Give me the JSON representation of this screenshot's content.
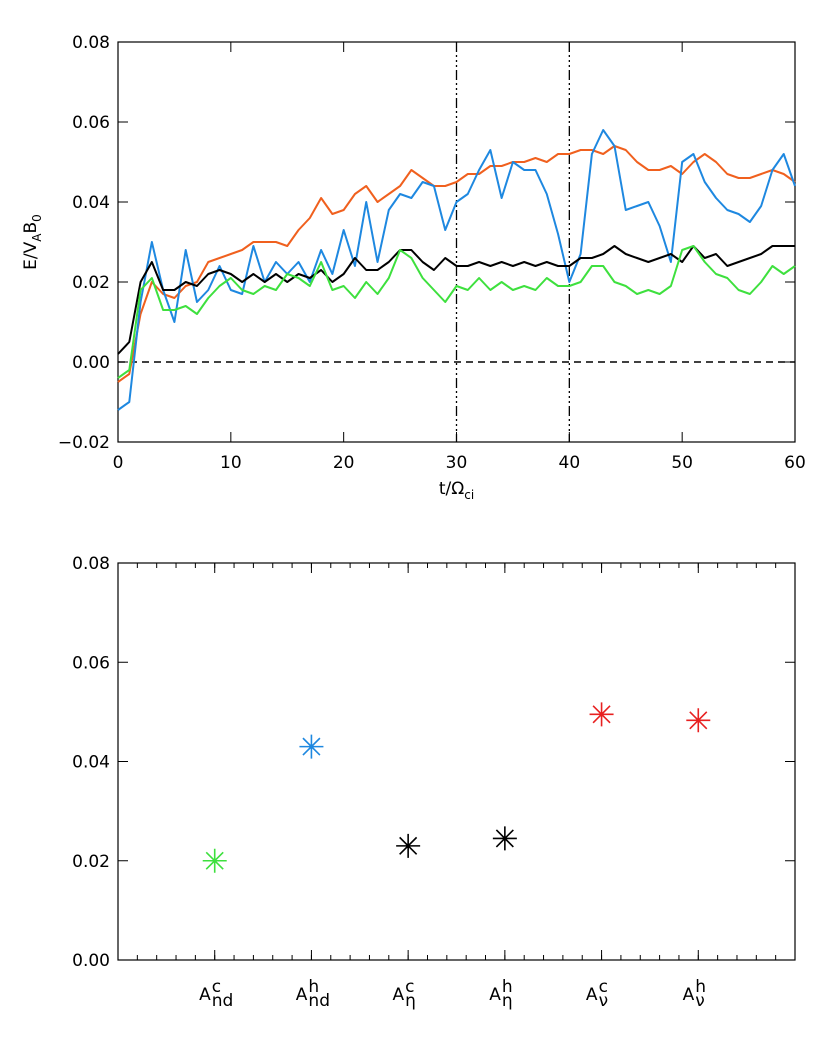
{
  "chart_data": [
    {
      "type": "line",
      "xlabel": [
        "t/Ω",
        "ci"
      ],
      "ylabel": [
        "E/V",
        "A",
        "B",
        "0"
      ],
      "x": [
        0,
        1,
        2,
        3,
        4,
        5,
        6,
        7,
        8,
        9,
        10,
        11,
        12,
        13,
        14,
        15,
        16,
        17,
        18,
        19,
        20,
        21,
        22,
        23,
        24,
        25,
        26,
        27,
        28,
        29,
        30,
        31,
        32,
        33,
        34,
        35,
        36,
        37,
        38,
        39,
        40,
        41,
        42,
        43,
        44,
        45,
        46,
        47,
        48,
        49,
        50,
        51,
        52,
        53,
        54,
        55,
        56,
        57,
        58,
        59,
        60
      ],
      "series": [
        {
          "color": "#f0601e",
          "values": [
            -0.005,
            -0.003,
            0.012,
            0.02,
            0.017,
            0.016,
            0.019,
            0.02,
            0.025,
            0.026,
            0.027,
            0.028,
            0.03,
            0.03,
            0.03,
            0.029,
            0.033,
            0.036,
            0.041,
            0.037,
            0.038,
            0.042,
            0.044,
            0.04,
            0.042,
            0.044,
            0.048,
            0.046,
            0.044,
            0.044,
            0.045,
            0.047,
            0.047,
            0.049,
            0.049,
            0.05,
            0.05,
            0.051,
            0.05,
            0.052,
            0.052,
            0.053,
            0.053,
            0.052,
            0.054,
            0.053,
            0.05,
            0.048,
            0.048,
            0.049,
            0.047,
            0.05,
            0.052,
            0.05,
            0.047,
            0.046,
            0.046,
            0.047,
            0.048,
            0.047,
            0.045
          ]
        },
        {
          "color": "#1e88e0",
          "values": [
            -0.012,
            -0.01,
            0.015,
            0.03,
            0.018,
            0.01,
            0.028,
            0.015,
            0.018,
            0.024,
            0.018,
            0.017,
            0.029,
            0.02,
            0.025,
            0.022,
            0.025,
            0.02,
            0.028,
            0.022,
            0.033,
            0.024,
            0.04,
            0.025,
            0.038,
            0.042,
            0.041,
            0.045,
            0.044,
            0.033,
            0.04,
            0.042,
            0.048,
            0.053,
            0.041,
            0.05,
            0.048,
            0.048,
            0.042,
            0.032,
            0.02,
            0.027,
            0.052,
            0.058,
            0.054,
            0.038,
            0.039,
            0.04,
            0.034,
            0.025,
            0.05,
            0.052,
            0.045,
            0.041,
            0.038,
            0.037,
            0.035,
            0.039,
            0.048,
            0.052,
            0.044
          ]
        },
        {
          "color": "#000000",
          "values": [
            0.002,
            0.005,
            0.02,
            0.025,
            0.018,
            0.018,
            0.02,
            0.019,
            0.022,
            0.023,
            0.022,
            0.02,
            0.022,
            0.02,
            0.022,
            0.02,
            0.022,
            0.021,
            0.023,
            0.02,
            0.022,
            0.026,
            0.023,
            0.023,
            0.025,
            0.028,
            0.028,
            0.025,
            0.023,
            0.026,
            0.024,
            0.024,
            0.025,
            0.024,
            0.025,
            0.024,
            0.025,
            0.024,
            0.025,
            0.024,
            0.024,
            0.026,
            0.026,
            0.027,
            0.029,
            0.027,
            0.026,
            0.025,
            0.026,
            0.027,
            0.025,
            0.029,
            0.026,
            0.027,
            0.024,
            0.025,
            0.026,
            0.027,
            0.029,
            0.029,
            0.029
          ]
        },
        {
          "color": "#3ee03e",
          "values": [
            -0.004,
            -0.002,
            0.018,
            0.021,
            0.013,
            0.013,
            0.014,
            0.012,
            0.016,
            0.019,
            0.021,
            0.018,
            0.017,
            0.019,
            0.018,
            0.022,
            0.021,
            0.019,
            0.025,
            0.018,
            0.019,
            0.016,
            0.02,
            0.017,
            0.021,
            0.028,
            0.026,
            0.021,
            0.018,
            0.015,
            0.019,
            0.018,
            0.021,
            0.018,
            0.02,
            0.018,
            0.019,
            0.018,
            0.021,
            0.019,
            0.019,
            0.02,
            0.024,
            0.024,
            0.02,
            0.019,
            0.017,
            0.018,
            0.017,
            0.019,
            0.028,
            0.029,
            0.025,
            0.022,
            0.021,
            0.018,
            0.017,
            0.02,
            0.024,
            0.022,
            0.024
          ]
        }
      ],
      "xlim": [
        0,
        60
      ],
      "xticks": [
        0,
        10,
        20,
        30,
        40,
        50,
        60
      ],
      "ylim": [
        -0.02,
        0.08
      ],
      "yticks": [
        {
          "value": -0.02,
          "label": "−0.02"
        },
        {
          "value": 0,
          "label": "0.00"
        },
        0.02,
        0.04,
        0.06,
        0.08
      ],
      "vlines": [
        30,
        40
      ],
      "hlines": [
        0
      ]
    },
    {
      "type": "scatter",
      "categories": [
        {
          "base": "A",
          "sup": "c",
          "sub": "nd"
        },
        {
          "base": "A",
          "sup": "h",
          "sub": "nd"
        },
        {
          "base": "A",
          "sup": "c",
          "sub": "η"
        },
        {
          "base": "A",
          "sup": "h",
          "sub": "η"
        },
        {
          "base": "A",
          "sup": "c",
          "sub": "ν"
        },
        {
          "base": "A",
          "sup": "h",
          "sub": "ν"
        }
      ],
      "values": [
        0.02,
        0.043,
        0.023,
        0.0245,
        0.0495,
        0.0483
      ],
      "colors": [
        "#3ee03e",
        "#1e88e0",
        "#000000",
        "#000000",
        "#e82020",
        "#e82020"
      ],
      "ylim": [
        0,
        0.08
      ],
      "yticks": [
        {
          "value": 0,
          "label": "0.00"
        },
        0.02,
        0.04,
        0.06,
        0.08
      ]
    }
  ]
}
